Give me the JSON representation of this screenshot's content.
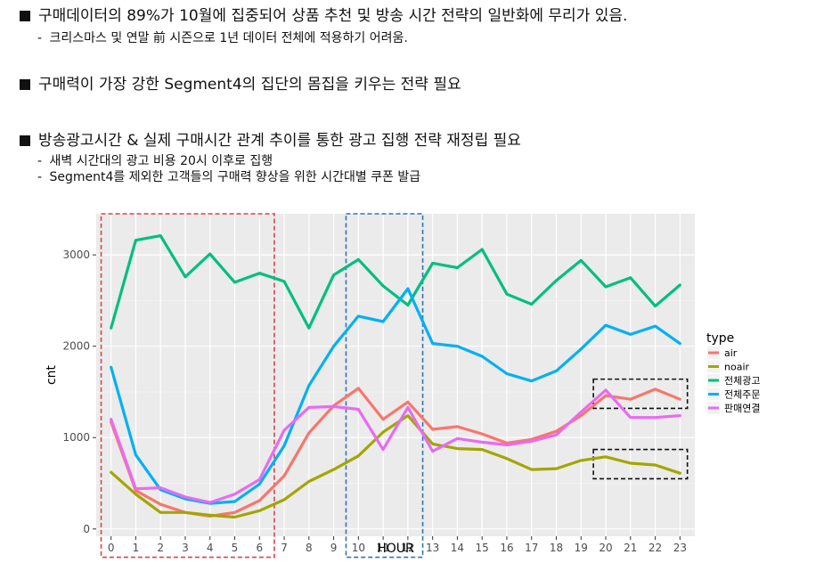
{
  "bullets": [
    {
      "text": "구매데이터의 89%가 10월에 집중되어 상품 추천 및 방송 시간 전략의 일반화에 무리가 있음.",
      "subs": [
        "크리스마스 및 연말 前 시즌으로 1년 데이터 전체에 적용하기 어려움."
      ]
    },
    {
      "text": "구매력이 가장 강한 Segment4의 집단의 몸집을 키우는 전략 필요",
      "subs": []
    },
    {
      "text": "방송광고시간 & 실제 구매시간 관계 추이를 통한 광고 집행 전략 재정립 필요",
      "subs": [
        "새벽 시간대의 광고 비용 20시 이후로 집행",
        "Segment4를 제외한 고객들의 구매력 향상을 위한 시간대별 쿠폰 발급"
      ]
    }
  ],
  "sub_prefix": "-",
  "chart_data": {
    "type": "line",
    "xlabel": "HOUR",
    "ylabel": "cnt",
    "legend_title": "type",
    "legend_position": "right",
    "grid": true,
    "xlim": [
      -0.6,
      23.6
    ],
    "ylim": [
      -80,
      3450
    ],
    "x": [
      0,
      1,
      2,
      3,
      4,
      5,
      6,
      7,
      8,
      9,
      10,
      11,
      12,
      13,
      14,
      15,
      16,
      17,
      18,
      19,
      20,
      21,
      22,
      23
    ],
    "x_ticks": [
      "0",
      "1",
      "2",
      "3",
      "4",
      "5",
      "6",
      "7",
      "8",
      "9",
      "10",
      "11",
      "12",
      "13",
      "14",
      "15",
      "16",
      "17",
      "18",
      "19",
      "20",
      "21",
      "22",
      "23"
    ],
    "y_ticks": [
      0,
      1000,
      2000,
      3000
    ],
    "y_tick_labels": [
      "0",
      "1000",
      "2000",
      "3000"
    ],
    "series": [
      {
        "name": "air",
        "color": "#F8766D",
        "values": [
          1170,
          420,
          270,
          180,
          140,
          180,
          310,
          580,
          1050,
          1350,
          1540,
          1200,
          1390,
          1090,
          1120,
          1040,
          940,
          980,
          1070,
          1240,
          1460,
          1420,
          1530,
          1420
        ]
      },
      {
        "name": "noair",
        "color": "#A3A500",
        "values": [
          620,
          380,
          180,
          180,
          150,
          130,
          200,
          320,
          520,
          650,
          800,
          1060,
          1240,
          930,
          880,
          870,
          770,
          650,
          660,
          750,
          790,
          720,
          700,
          610
        ]
      },
      {
        "name": "전체광고",
        "color": "#00BF7D",
        "values": [
          2200,
          3160,
          3210,
          2760,
          3010,
          2700,
          2800,
          2710,
          2200,
          2780,
          2950,
          2660,
          2450,
          2910,
          2860,
          3060,
          2570,
          2460,
          2720,
          2940,
          2650,
          2750,
          2440,
          2670
        ]
      },
      {
        "name": "전체주문",
        "color": "#00B0F6",
        "values": [
          1770,
          810,
          430,
          330,
          280,
          300,
          490,
          910,
          1570,
          2000,
          2330,
          2270,
          2630,
          2030,
          2000,
          1890,
          1700,
          1620,
          1730,
          1970,
          2230,
          2130,
          2220,
          2030
        ]
      },
      {
        "name": "판매연결",
        "color": "#E76BF3",
        "values": [
          1200,
          440,
          450,
          350,
          290,
          380,
          540,
          1080,
          1330,
          1340,
          1310,
          870,
          1330,
          850,
          990,
          950,
          920,
          960,
          1030,
          1280,
          1520,
          1220,
          1220,
          1240
        ]
      }
    ],
    "annotations": [
      {
        "type": "dashed-box",
        "color": "#D9434D",
        "x_from": -0.4,
        "x_to": 6.6,
        "y_from": -310,
        "y_to": 3450
      },
      {
        "type": "dashed-box",
        "color": "#2E75B6",
        "x_from": 9.5,
        "x_to": 12.6,
        "y_from": -310,
        "y_to": 3450
      },
      {
        "type": "dashed-box",
        "color": "#111111",
        "x_from": 19.5,
        "x_to": 23.3,
        "y_from": 1320,
        "y_to": 1640
      },
      {
        "type": "dashed-box",
        "color": "#111111",
        "x_from": 19.5,
        "x_to": 23.3,
        "y_from": 550,
        "y_to": 870
      }
    ]
  }
}
